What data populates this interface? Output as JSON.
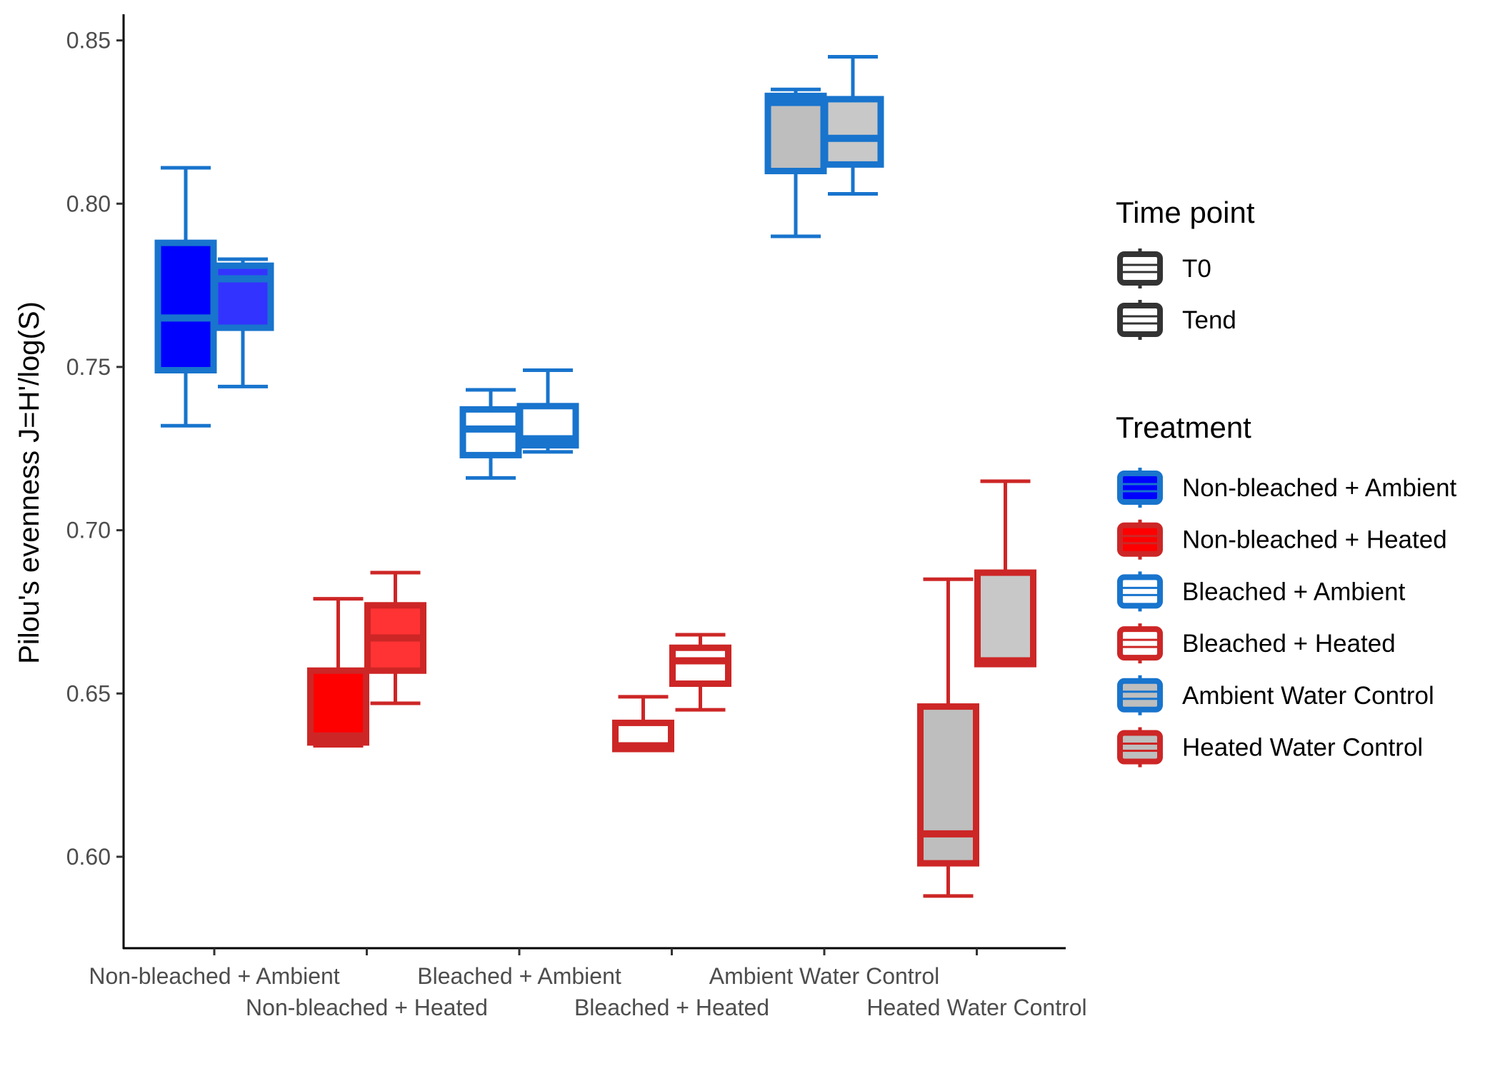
{
  "chart_data": {
    "type": "box",
    "ylabel": "Pilou's evenness J=H'/log(S)",
    "xlabel": "",
    "ylim": [
      0.572,
      0.858
    ],
    "yticks": [
      0.6,
      0.65,
      0.7,
      0.75,
      0.8,
      0.85
    ],
    "ytick_labels": [
      "0.60",
      "0.65",
      "0.70",
      "0.75",
      "0.80",
      "0.85"
    ],
    "grid": false,
    "legend_position": "right",
    "categories": [
      "Non-bleached + Ambient",
      "Non-bleached + Heated",
      "Bleached + Ambient",
      "Bleached + Heated",
      "Ambient Water Control",
      "Heated Water Control"
    ],
    "legends": {
      "time_point": {
        "title": "Time point",
        "items": [
          "T0",
          "Tend"
        ]
      },
      "treatment": {
        "title": "Treatment",
        "items": [
          {
            "label": "Non-bleached + Ambient",
            "fill": "#0000ff",
            "outline": "#1874cd"
          },
          {
            "label": "Non-bleached + Heated",
            "fill": "#ff0000",
            "outline": "#cd2626"
          },
          {
            "label": "Bleached + Ambient",
            "fill": "#ffffff",
            "outline": "#1874cd"
          },
          {
            "label": "Bleached + Heated",
            "fill": "#ffffff",
            "outline": "#cd2626"
          },
          {
            "label": "Ambient Water Control",
            "fill": "#bebebe",
            "outline": "#1874cd"
          },
          {
            "label": "Heated Water Control",
            "fill": "#bebebe",
            "outline": "#cd2626"
          }
        ]
      }
    },
    "boxes": [
      {
        "category": "Non-bleached + Ambient",
        "time_point": "T0",
        "min": 0.732,
        "q1": 0.749,
        "median": 0.765,
        "q3": 0.788,
        "max": 0.811,
        "fill": "#0000ff",
        "outline": "#1874cd"
      },
      {
        "category": "Non-bleached + Ambient",
        "time_point": "Tend",
        "min": 0.744,
        "q1": 0.762,
        "median": 0.777,
        "q3": 0.781,
        "max": 0.783,
        "fill": "#3333ff",
        "outline": "#1874cd"
      },
      {
        "category": "Non-bleached + Heated",
        "time_point": "T0",
        "min": 0.634,
        "q1": 0.635,
        "median": 0.637,
        "q3": 0.657,
        "max": 0.679,
        "fill": "#ff0000",
        "outline": "#cd2626"
      },
      {
        "category": "Non-bleached + Heated",
        "time_point": "Tend",
        "min": 0.647,
        "q1": 0.657,
        "median": 0.667,
        "q3": 0.677,
        "max": 0.687,
        "fill": "#ff3333",
        "outline": "#cd2626"
      },
      {
        "category": "Bleached + Ambient",
        "time_point": "T0",
        "min": 0.716,
        "q1": 0.723,
        "median": 0.731,
        "q3": 0.737,
        "max": 0.743,
        "fill": "#ffffff",
        "outline": "#1874cd"
      },
      {
        "category": "Bleached + Ambient",
        "time_point": "Tend",
        "min": 0.724,
        "q1": 0.726,
        "median": 0.728,
        "q3": 0.738,
        "max": 0.749,
        "fill": "#ffffff",
        "outline": "#1874cd"
      },
      {
        "category": "Bleached + Heated",
        "time_point": "T0",
        "min": 0.633,
        "q1": 0.633,
        "median": 0.634,
        "q3": 0.641,
        "max": 0.649,
        "fill": "#ffffff",
        "outline": "#cd2626"
      },
      {
        "category": "Bleached + Heated",
        "time_point": "Tend",
        "min": 0.645,
        "q1": 0.653,
        "median": 0.66,
        "q3": 0.664,
        "max": 0.668,
        "fill": "#ffffff",
        "outline": "#cd2626"
      },
      {
        "category": "Ambient Water Control",
        "time_point": "T0",
        "min": 0.79,
        "q1": 0.81,
        "median": 0.831,
        "q3": 0.833,
        "max": 0.835,
        "fill": "#bebebe",
        "outline": "#1874cd"
      },
      {
        "category": "Ambient Water Control",
        "time_point": "Tend",
        "min": 0.803,
        "q1": 0.812,
        "median": 0.82,
        "q3": 0.832,
        "max": 0.845,
        "fill": "#c8c8c8",
        "outline": "#1874cd"
      },
      {
        "category": "Heated Water Control",
        "time_point": "T0",
        "min": 0.588,
        "q1": 0.598,
        "median": 0.607,
        "q3": 0.646,
        "max": 0.685,
        "fill": "#bebebe",
        "outline": "#cd2626"
      },
      {
        "category": "Heated Water Control",
        "time_point": "Tend",
        "min": 0.659,
        "q1": 0.659,
        "median": 0.66,
        "q3": 0.687,
        "max": 0.715,
        "fill": "#c8c8c8",
        "outline": "#cd2626"
      }
    ]
  }
}
